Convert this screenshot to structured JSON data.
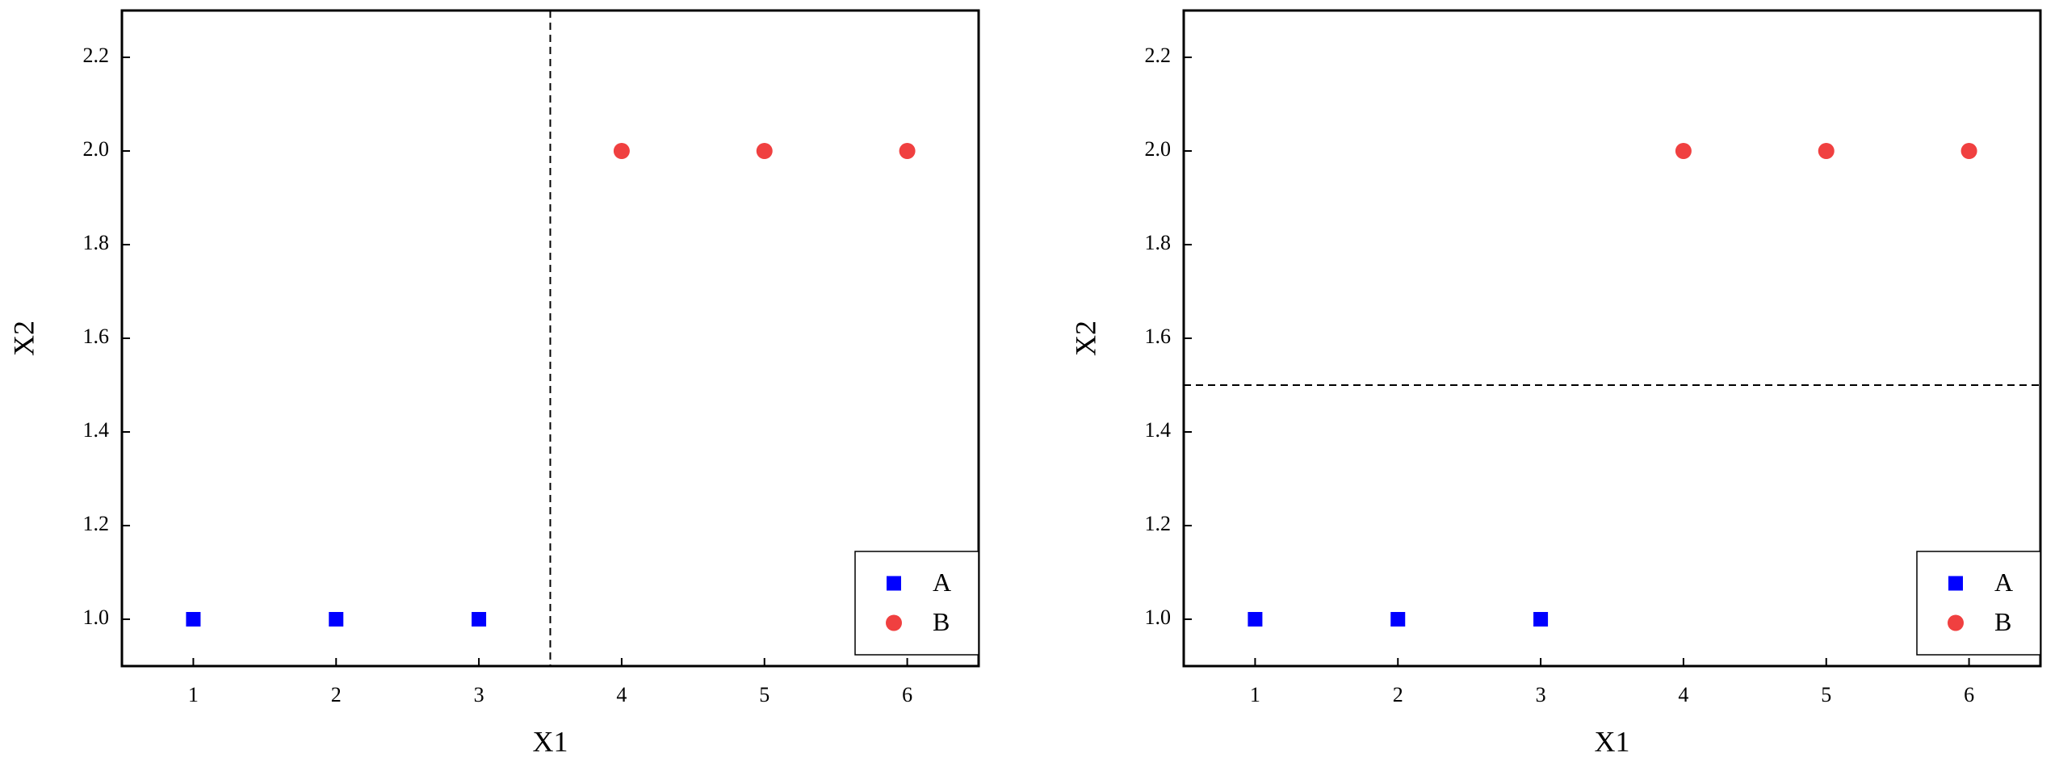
{
  "chart_data": [
    {
      "type": "scatter",
      "xlabel": "X1",
      "ylabel": "X2",
      "xlim": [
        0.5,
        6.5
      ],
      "ylim": [
        0.9,
        2.3
      ],
      "xticks": [
        1,
        2,
        3,
        4,
        5,
        6
      ],
      "yticks": [
        {
          "value": 1,
          "label": "1.0"
        },
        {
          "value": 1.2,
          "label": "1.2"
        },
        {
          "value": 1.4,
          "label": "1.4"
        },
        {
          "value": 1.6,
          "label": "1.6"
        },
        {
          "value": 1.8,
          "label": "1.8"
        },
        {
          "value": 2,
          "label": "2.0"
        },
        {
          "value": 2.2,
          "label": "2.2"
        }
      ],
      "vline": 3.5,
      "legend": "lower right",
      "series": [
        {
          "name": "A",
          "color": "#0000ff",
          "marker": "square",
          "x": [
            1,
            2,
            3
          ],
          "y": [
            1,
            1,
            1
          ]
        },
        {
          "name": "B",
          "color": "#f04040",
          "marker": "circle",
          "x": [
            4,
            5,
            6
          ],
          "y": [
            2,
            2,
            2
          ]
        }
      ]
    },
    {
      "type": "scatter",
      "xlabel": "X1",
      "ylabel": "X2",
      "xlim": [
        0.5,
        6.5
      ],
      "ylim": [
        0.9,
        2.3
      ],
      "xticks": [
        1,
        2,
        3,
        4,
        5,
        6
      ],
      "yticks": [
        {
          "value": 1,
          "label": "1.0"
        },
        {
          "value": 1.2,
          "label": "1.2"
        },
        {
          "value": 1.4,
          "label": "1.4"
        },
        {
          "value": 1.6,
          "label": "1.6"
        },
        {
          "value": 1.8,
          "label": "1.8"
        },
        {
          "value": 2,
          "label": "2.0"
        },
        {
          "value": 2.2,
          "label": "2.2"
        }
      ],
      "hline": 1.5,
      "legend": "lower right",
      "series": [
        {
          "name": "A",
          "color": "#0000ff",
          "marker": "square",
          "x": [
            1,
            2,
            3
          ],
          "y": [
            1,
            1,
            1
          ]
        },
        {
          "name": "B",
          "color": "#f04040",
          "marker": "circle",
          "x": [
            4,
            5,
            6
          ],
          "y": [
            2,
            2,
            2
          ]
        }
      ]
    }
  ]
}
